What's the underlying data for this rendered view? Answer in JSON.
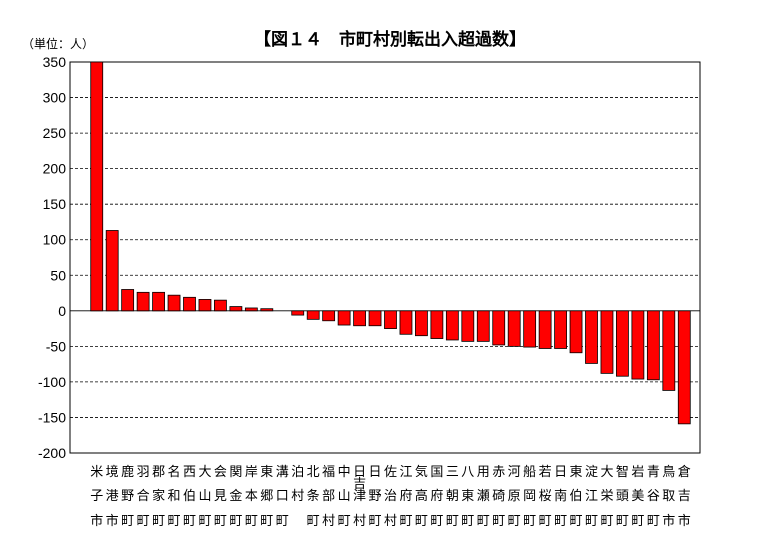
{
  "chart_data": {
    "type": "bar",
    "title": "【図１４　市町村別転出入超過数】",
    "unit_label": "（単位：人）",
    "ylim": [
      -200,
      350
    ],
    "yticks": [
      350,
      300,
      250,
      200,
      150,
      100,
      50,
      0,
      -50,
      -100,
      -150,
      -200
    ],
    "grid": "horizontal-dashed",
    "bar_color": "#ff0000",
    "categories": [
      "米子市",
      "境港市",
      "鹿野町",
      "羽合町",
      "郡家町",
      "名和町",
      "西伯町",
      "大山町",
      "会見町",
      "関金町",
      "岸本町",
      "東郷町",
      "溝口町",
      "泊村",
      "北条町",
      "福部村",
      "中山町",
      "日吉津村",
      "日野町",
      "佐治村",
      "江府町",
      "気高町",
      "国府町",
      "三朝町",
      "八東町",
      "用瀬町",
      "赤碕町",
      "河原町",
      "船岡町",
      "若桜町",
      "日南町",
      "東伯町",
      "淀江町",
      "大栄町",
      "智頭町",
      "岩美町",
      "青谷町",
      "鳥取市",
      "倉吉市"
    ],
    "values": [
      350,
      113,
      30,
      26,
      26,
      22,
      19,
      16,
      15,
      6,
      4,
      3,
      0,
      -6,
      -12,
      -14,
      -20,
      -21,
      -21,
      -25,
      -33,
      -35,
      -39,
      -41,
      -43,
      -43,
      -48,
      -50,
      -51,
      -53,
      -53,
      -59,
      -74,
      -88,
      -92,
      -96,
      -97,
      -112,
      -159
    ]
  }
}
